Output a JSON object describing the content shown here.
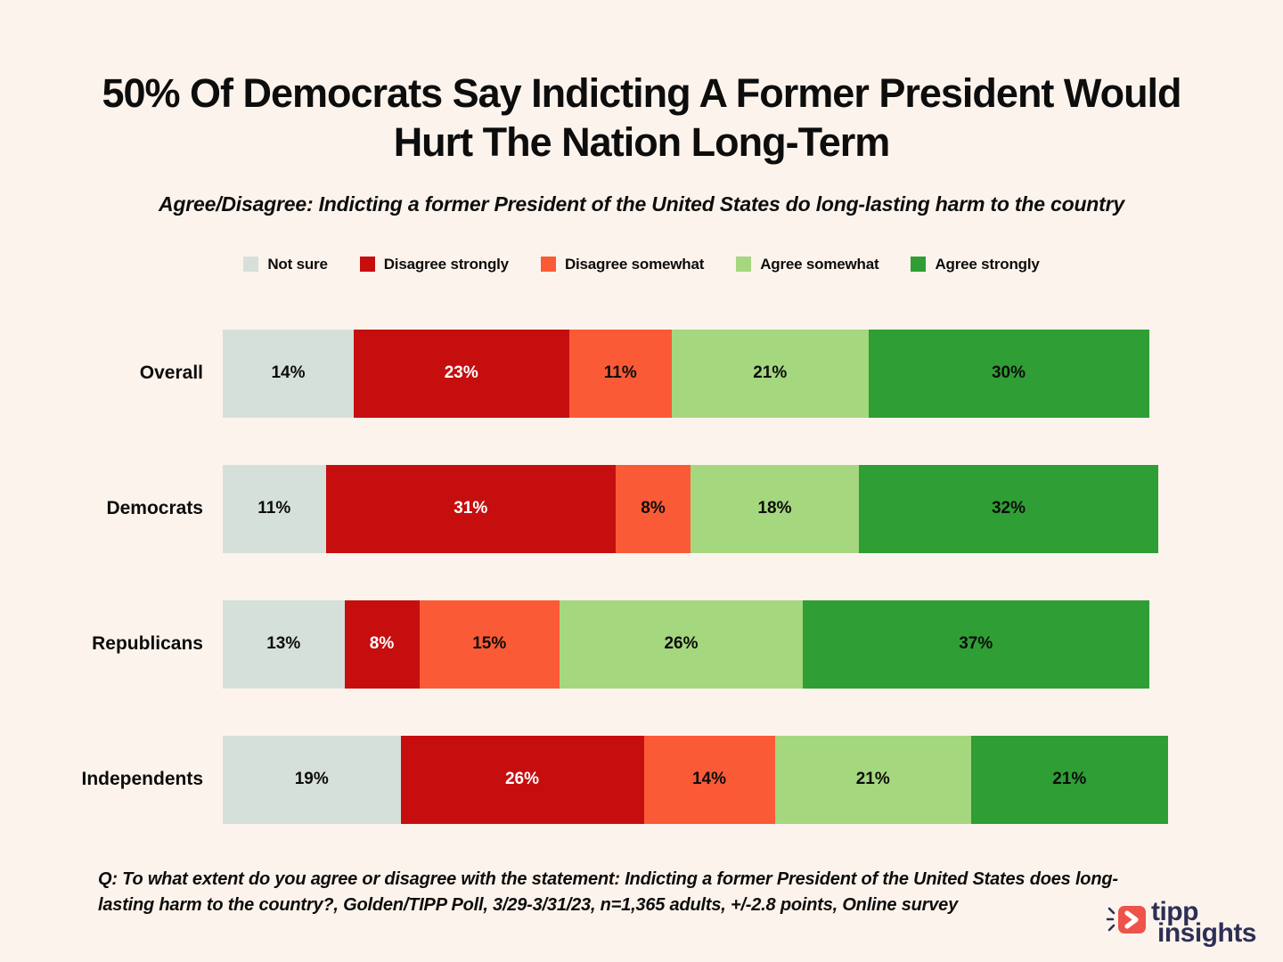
{
  "page": {
    "background_color": "#fcf3ec"
  },
  "chart_data": {
    "type": "bar",
    "variant": "horizontal-stacked",
    "title": "50% Of Democrats Say Indicting A Former President Would Hurt The Nation Long-Term",
    "subtitle": "Agree/Disagree: Indicting a former President of the United States do long-lasting harm to the country",
    "legend_position": "top",
    "value_suffix": "%",
    "categories": [
      "Overall",
      "Democrats",
      "Republicans",
      "Independents"
    ],
    "series": [
      {
        "name": "Not sure",
        "color": "#d6e0da",
        "label_color": "#0d0d0d",
        "values": [
          14,
          11,
          13,
          19
        ]
      },
      {
        "name": "Disagree strongly",
        "color": "#c60e0f",
        "label_color": "#ffffff",
        "values": [
          23,
          31,
          8,
          26
        ]
      },
      {
        "name": "Disagree somewhat",
        "color": "#fb5a36",
        "label_color": "#0d0d0d",
        "values": [
          11,
          8,
          15,
          14
        ]
      },
      {
        "name": "Agree somewhat",
        "color": "#a5d77e",
        "label_color": "#0d0d0d",
        "values": [
          21,
          18,
          26,
          21
        ]
      },
      {
        "name": "Agree strongly",
        "color": "#2f9e34",
        "label_color": "#0d0d0d",
        "values": [
          30,
          32,
          37,
          21
        ]
      }
    ]
  },
  "footer": {
    "line1": "Q: To what extent do you agree or disagree with the statement: Indicting a former President of the United States does long-",
    "line2": "lasting harm to the country?, Golden/TIPP Poll, 3/29-3/31/23, n=1,365 adults, +/-2.8 points, Online survey"
  },
  "logo": {
    "line1": "tipp",
    "line2": "insights",
    "icon_color": "#ed5348",
    "text_color": "#2d2f55"
  }
}
